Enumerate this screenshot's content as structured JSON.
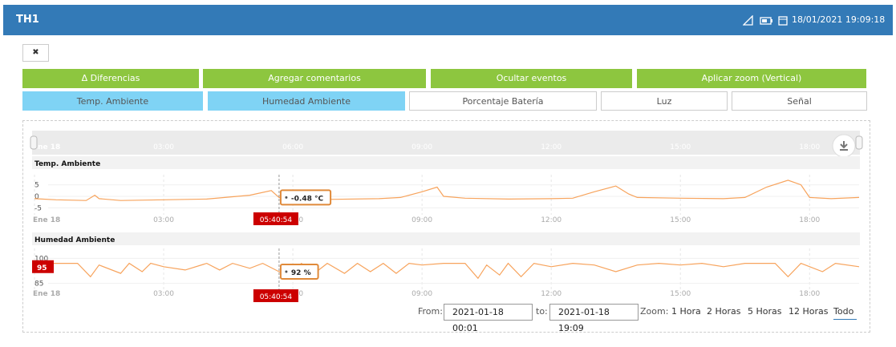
{
  "header": {
    "title": "TH1",
    "datetime": "18/01/2021 19:09:18"
  },
  "close_button": "✖",
  "actions": [
    "Δ Diferencias",
    "Agregar comentarios",
    "Ocultar eventos",
    "Aplicar zoom (Vertical)"
  ],
  "tabs": [
    {
      "label": "Temp. Ambiente",
      "active": true
    },
    {
      "label": "Humedad Ambiente",
      "active": true
    },
    {
      "label": "Porcentaje Batería",
      "active": false
    },
    {
      "label": "Luz",
      "active": false
    },
    {
      "label": "Señal",
      "active": false
    }
  ],
  "chart_data": [
    {
      "type": "navigator",
      "xlim": [
        0,
        19.15
      ],
      "xticks": [
        {
          "value": 0,
          "label": "Ene 18"
        },
        {
          "value": 3,
          "label": "03:00"
        },
        {
          "value": 6,
          "label": "06:00"
        },
        {
          "value": 9,
          "label": "09:00"
        },
        {
          "value": 12,
          "label": "12:00"
        },
        {
          "value": 15,
          "label": "15:00"
        },
        {
          "value": 18,
          "label": "18:00"
        }
      ]
    },
    {
      "type": "line",
      "title": "Temp. Ambiente",
      "color": "#f7a35c",
      "x": [
        0,
        0.5,
        1.2,
        1.4,
        1.5,
        2,
        3,
        4,
        5,
        5.5,
        5.68,
        6,
        7,
        8,
        8.5,
        9,
        9.35,
        9.5,
        10,
        11,
        12,
        12.5,
        13,
        13.5,
        13.8,
        14,
        15,
        16,
        16.5,
        17,
        17.5,
        17.8,
        18,
        18.5,
        19.15
      ],
      "values": [
        -1,
        -1.5,
        -1.8,
        0.5,
        -1,
        -1.8,
        -1.5,
        -1.2,
        0.5,
        2.5,
        -0.48,
        -1.5,
        -1.3,
        -1,
        -0.5,
        2,
        4,
        0,
        -0.8,
        -1.2,
        -1,
        -0.8,
        2,
        4.5,
        1,
        -0.5,
        -0.8,
        -1,
        -0.5,
        4,
        7,
        5,
        -0.5,
        -1,
        -0.5
      ],
      "xlim": [
        0,
        19.15
      ],
      "xticks": [
        {
          "value": 0,
          "label": "Ene 18"
        },
        {
          "value": 3,
          "label": "03:00"
        },
        {
          "value": 6,
          "label": "06:00"
        },
        {
          "value": 9,
          "label": "09:00"
        },
        {
          "value": 12,
          "label": "12:00"
        },
        {
          "value": 15,
          "label": "15:00"
        },
        {
          "value": 18,
          "label": "18:00"
        }
      ],
      "ylim": [
        -8,
        8
      ],
      "yticks": [
        5,
        0,
        -5
      ],
      "crosshair": {
        "x": 5.68,
        "label": "05:40:54"
      },
      "tooltip": "-0.48 °C"
    },
    {
      "type": "line",
      "title": "Humedad Ambiente",
      "color": "#f7a35c",
      "x": [
        0,
        1,
        1.3,
        1.5,
        2,
        2.2,
        2.5,
        2.7,
        3,
        3.5,
        4,
        4.3,
        4.6,
        5,
        5.3,
        5.68,
        5.9,
        6.2,
        6.5,
        6.8,
        7.2,
        7.5,
        7.8,
        8.1,
        8.4,
        8.7,
        9,
        9.5,
        10,
        10.3,
        10.5,
        10.8,
        11,
        11.3,
        11.6,
        12,
        12.5,
        13,
        13.5,
        14,
        14.5,
        15,
        15.5,
        16,
        16.5,
        17.2,
        17.5,
        17.8,
        18.3,
        18.6,
        19.15
      ],
      "values": [
        97,
        97,
        89,
        96,
        91,
        97,
        92,
        97,
        95,
        93,
        97,
        93,
        97,
        94,
        97,
        92,
        90,
        97,
        91,
        97,
        91,
        97,
        92,
        97,
        91,
        97,
        96,
        97,
        97,
        88,
        96,
        90,
        97,
        89,
        97,
        95,
        97,
        96,
        92,
        96,
        97,
        96,
        97,
        95,
        97,
        97,
        89,
        97,
        92,
        97,
        95
      ],
      "xlim": [
        0,
        19.15
      ],
      "xticks": [
        {
          "value": 0,
          "label": "Ene 18"
        },
        {
          "value": 3,
          "label": "03:00"
        },
        {
          "value": 6,
          "label": "06:00"
        },
        {
          "value": 9,
          "label": "09:00"
        },
        {
          "value": 12,
          "label": "12:00"
        },
        {
          "value": 15,
          "label": "15:00"
        },
        {
          "value": 18,
          "label": "18:00"
        }
      ],
      "ylim": [
        80,
        104
      ],
      "yticks": [
        100,
        85
      ],
      "y_marker": 95,
      "crosshair": {
        "x": 5.68,
        "label": "05:40:54"
      },
      "tooltip": "92 %"
    }
  ],
  "range": {
    "from_label": "From:",
    "from": "2021-01-18 00:01",
    "to_label": "to:",
    "to": "2021-01-18 19:09"
  },
  "zoom": {
    "label": "Zoom:",
    "options": [
      "1 Hora",
      "2 Horas",
      "5 Horas",
      "12 Horas",
      "Todo"
    ],
    "selected": 4
  }
}
